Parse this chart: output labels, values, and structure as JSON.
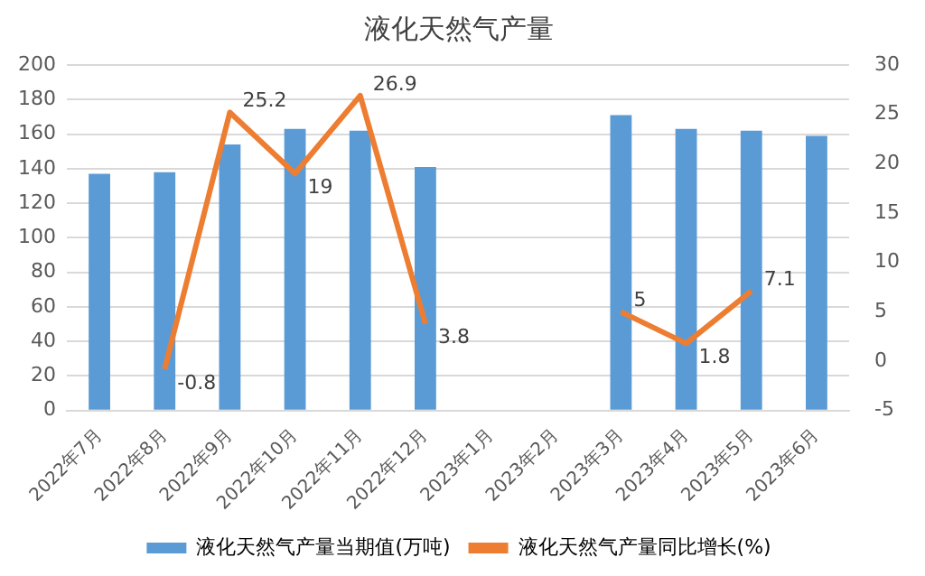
{
  "chart_data": {
    "type": "bar",
    "title": "液化天然气产量",
    "categories": [
      "2022年7月",
      "2022年8月",
      "2022年9月",
      "2022年10月",
      "2022年11月",
      "2022年12月",
      "2023年1月",
      "2023年2月",
      "2023年3月",
      "2023年4月",
      "2023年5月",
      "2023年6月"
    ],
    "series": [
      {
        "name": "液化天然气产量当期值(万吨)",
        "color": "#5b9bd5",
        "values": [
          137,
          138,
          154,
          163,
          162,
          141,
          null,
          null,
          171,
          163,
          162,
          159
        ]
      },
      {
        "name": "液化天然气产量同比增长(%)",
        "type": "line",
        "axis": "y2",
        "color": "#ed7d31",
        "data_labels": true,
        "values": [
          null,
          -0.8,
          25.2,
          19,
          26.9,
          3.8,
          null,
          null,
          5,
          1.8,
          7.1,
          null
        ]
      }
    ],
    "ylim": [
      0,
      200
    ],
    "yticks": [
      0,
      20,
      40,
      60,
      80,
      100,
      120,
      140,
      160,
      180,
      200
    ],
    "y2lim": [
      -5,
      30
    ],
    "y2ticks": [
      -5,
      0,
      5,
      10,
      15,
      20,
      25,
      30
    ],
    "grid": "y",
    "legend": "bottom",
    "marker": "none",
    "line_style": "solid"
  }
}
